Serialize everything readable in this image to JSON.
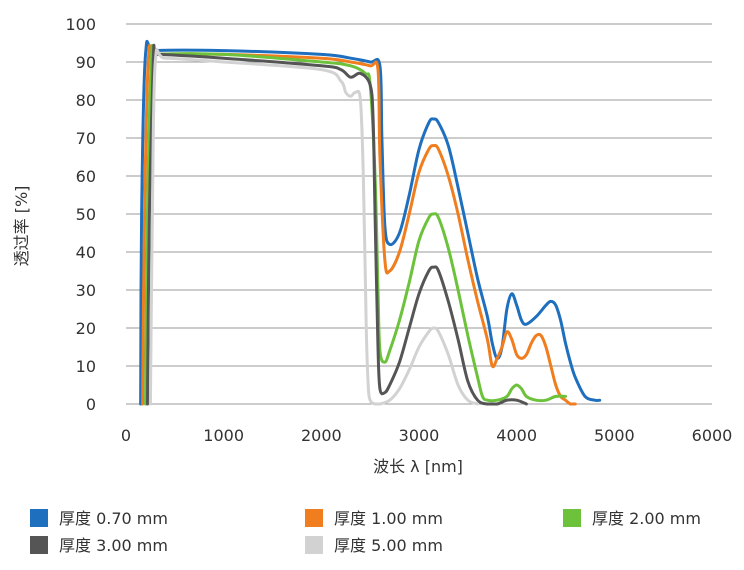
{
  "chart_data": {
    "type": "line",
    "title": "",
    "xlabel": "波长 λ [nm]",
    "ylabel": "透过率 [%]",
    "xlim": [
      0,
      6000
    ],
    "ylim": [
      0,
      100
    ],
    "xticks": [
      "0",
      "1000",
      "2000",
      "3000",
      "4000",
      "5000",
      "6000"
    ],
    "yticks": [
      "0",
      "10",
      "20",
      "30",
      "40",
      "50",
      "60",
      "70",
      "80",
      "90",
      "100"
    ],
    "grid": "horizontal",
    "legend_position": "bottom",
    "series": [
      {
        "name": "厚度 0.70 mm",
        "color": "#1f6fbf",
        "x": [
          150,
          160,
          200,
          300,
          1000,
          2000,
          2300,
          2500,
          2600,
          2620,
          2650,
          2700,
          2800,
          2900,
          3000,
          3100,
          3150,
          3200,
          3300,
          3400,
          3500,
          3600,
          3700,
          3750,
          3800,
          3850,
          3900,
          3950,
          4000,
          4050,
          4100,
          4200,
          4300,
          4350,
          4400,
          4450,
          4500,
          4550,
          4600,
          4700,
          4800,
          4850
        ],
        "y": [
          0,
          50,
          92,
          93,
          93,
          92,
          91,
          90,
          89,
          70,
          47,
          42,
          45,
          55,
          67,
          74,
          75,
          74,
          68,
          57,
          45,
          33,
          23,
          16,
          12,
          15,
          25,
          29,
          26,
          22,
          21,
          23,
          26,
          27,
          26,
          22,
          16,
          11,
          7,
          2,
          1,
          1
        ]
      },
      {
        "name": "厚度 1.00 mm",
        "color": "#f07d1e",
        "x": [
          170,
          190,
          230,
          300,
          1000,
          2000,
          2300,
          2500,
          2580,
          2600,
          2650,
          2700,
          2800,
          2900,
          3000,
          3100,
          3150,
          3200,
          3300,
          3400,
          3500,
          3600,
          3700,
          3750,
          3800,
          3850,
          3900,
          3950,
          4000,
          4050,
          4100,
          4150,
          4200,
          4250,
          4300,
          4350,
          4400,
          4450,
          4500,
          4550,
          4600
        ],
        "y": [
          0,
          50,
          91,
          92,
          92,
          91,
          90,
          89,
          88,
          65,
          38,
          35,
          40,
          50,
          61,
          67,
          68,
          67,
          60,
          50,
          38,
          27,
          17,
          10,
          12,
          15,
          19,
          17,
          13,
          12,
          13,
          16,
          18,
          18,
          15,
          10,
          5,
          2,
          1,
          0,
          0
        ]
      },
      {
        "name": "厚度 2.00 mm",
        "color": "#6cc23a",
        "x": [
          200,
          220,
          260,
          300,
          1000,
          2000,
          2300,
          2450,
          2500,
          2550,
          2580,
          2600,
          2650,
          2700,
          2800,
          2900,
          3000,
          3100,
          3150,
          3200,
          3300,
          3400,
          3500,
          3600,
          3650,
          3700,
          3800,
          3900,
          3950,
          4000,
          4050,
          4100,
          4200,
          4300,
          4400,
          4500
        ],
        "y": [
          0,
          50,
          91,
          92,
          92,
          90,
          89,
          87,
          84,
          60,
          30,
          14,
          11,
          14,
          22,
          32,
          43,
          49,
          50,
          49,
          41,
          30,
          18,
          7,
          2,
          1,
          1,
          2,
          4,
          5,
          4,
          2,
          1,
          1,
          2,
          2
        ]
      },
      {
        "name": "厚度 3.00 mm",
        "color": "#555555",
        "x": [
          220,
          240,
          280,
          300,
          1000,
          2000,
          2200,
          2300,
          2400,
          2500,
          2530,
          2550,
          2580,
          2600,
          2650,
          2700,
          2800,
          2900,
          3000,
          3100,
          3150,
          3200,
          3300,
          3400,
          3500,
          3600,
          3700,
          3800,
          3900,
          4000,
          4100
        ],
        "y": [
          0,
          50,
          91,
          92,
          91,
          89,
          88,
          86,
          87,
          84,
          75,
          50,
          15,
          4,
          3,
          5,
          11,
          20,
          29,
          35,
          36,
          35,
          27,
          17,
          6,
          1,
          0,
          0,
          1,
          1,
          0
        ]
      },
      {
        "name": "厚度 5.00 mm",
        "color": "#d2d2d2",
        "x": [
          250,
          270,
          300,
          400,
          1000,
          2000,
          2200,
          2250,
          2300,
          2350,
          2400,
          2430,
          2460,
          2480,
          2500,
          2550,
          2600,
          2700,
          2800,
          2900,
          3000,
          3100,
          3150,
          3200,
          3300,
          3400,
          3500,
          3600
        ],
        "y": [
          0,
          50,
          90,
          91,
          90,
          88,
          85,
          82,
          81,
          82,
          80,
          60,
          20,
          5,
          1,
          0,
          0,
          1,
          4,
          9,
          15,
          19,
          20,
          19,
          13,
          5,
          1,
          0
        ]
      }
    ]
  }
}
